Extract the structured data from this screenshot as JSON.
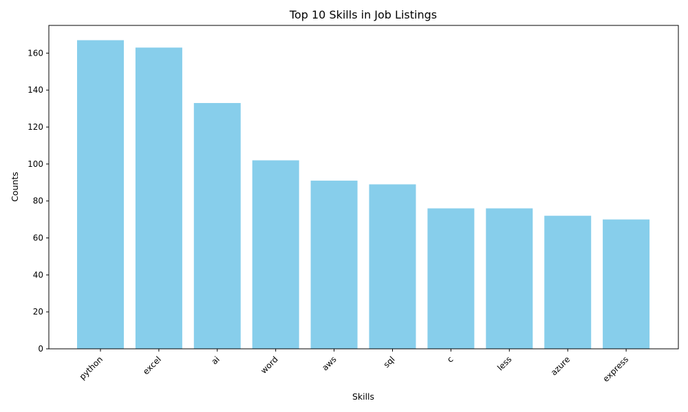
{
  "chart_data": {
    "type": "bar",
    "title": "Top 10 Skills in Job Listings",
    "xlabel": "Skills",
    "ylabel": "Counts",
    "categories": [
      "python",
      "excel",
      "ai",
      "word",
      "aws",
      "sql",
      "c",
      "less",
      "azure",
      "express"
    ],
    "values": [
      167,
      163,
      133,
      102,
      91,
      89,
      76,
      76,
      72,
      70
    ],
    "ylim": [
      0,
      175
    ],
    "yticks": [
      0,
      20,
      40,
      60,
      80,
      100,
      120,
      140,
      160
    ],
    "bar_color": "#87CEEB",
    "grid": false,
    "legend": "none"
  }
}
